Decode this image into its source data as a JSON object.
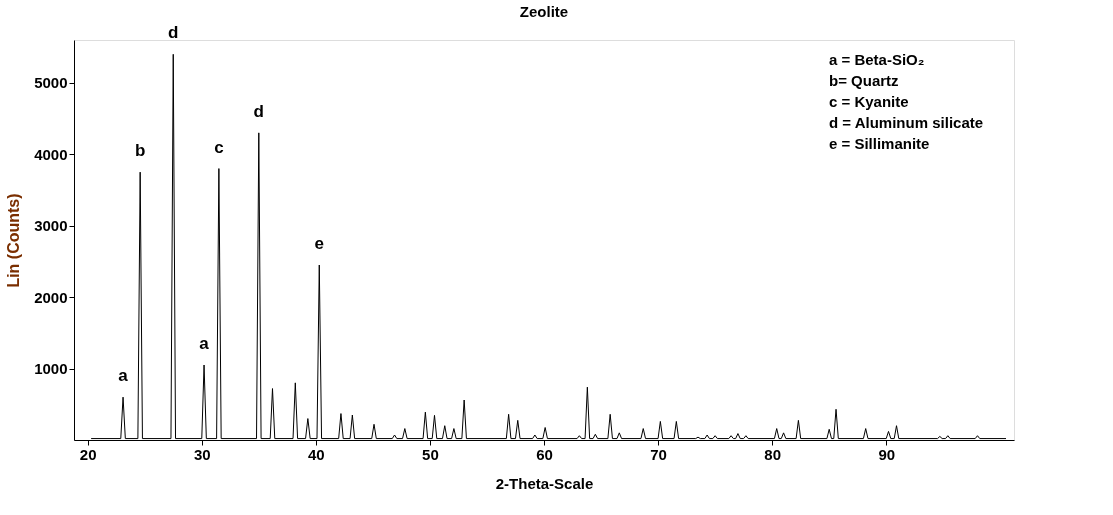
{
  "chart_data": {
    "type": "line",
    "title": "Zeolite",
    "xlabel": "2-Theta-Scale",
    "ylabel": "Lin (Counts)",
    "xlim": [
      18.8,
      101.2
    ],
    "xticks": [
      20,
      30,
      40,
      50,
      60,
      70,
      80,
      90
    ],
    "ylim": [
      0,
      5600
    ],
    "yticks": [
      1000,
      2000,
      3000,
      4000,
      5000
    ],
    "grid": false,
    "marker": "none",
    "line_style": "solid",
    "series": [
      {
        "color": "#000000",
        "x": [
          20.3,
          22.9,
          23.1,
          23.3,
          24.4,
          24.6,
          24.8,
          27.3,
          27.5,
          27.7,
          30.0,
          30.2,
          30.4,
          31.3,
          31.5,
          31.7,
          34.8,
          35.0,
          35.2,
          36.0,
          36.2,
          36.4,
          38.0,
          38.2,
          38.4,
          39.1,
          39.3,
          39.5,
          40.1,
          40.3,
          40.5,
          42.0,
          42.2,
          42.4,
          43.0,
          43.2,
          43.4,
          44.9,
          45.1,
          45.3,
          46.7,
          46.9,
          47.1,
          47.6,
          47.8,
          48.0,
          49.4,
          49.6,
          49.8,
          50.2,
          50.4,
          50.6,
          51.1,
          51.3,
          51.5,
          51.9,
          52.1,
          52.3,
          52.8,
          53.0,
          53.2,
          56.7,
          56.9,
          57.1,
          57.5,
          57.7,
          57.9,
          59.0,
          59.2,
          59.4,
          59.9,
          60.1,
          60.3,
          62.9,
          63.1,
          63.3,
          63.6,
          63.8,
          64.0,
          64.3,
          64.5,
          64.7,
          65.6,
          65.8,
          66.0,
          66.4,
          66.6,
          66.8,
          68.5,
          68.7,
          68.9,
          70.0,
          70.2,
          70.4,
          71.4,
          71.6,
          71.8,
          73.3,
          73.5,
          73.7,
          74.1,
          74.3,
          74.5,
          74.8,
          75.0,
          75.2,
          76.2,
          76.4,
          76.6,
          76.8,
          77.0,
          77.2,
          77.5,
          77.7,
          77.9,
          80.2,
          80.4,
          80.6,
          80.8,
          81.0,
          81.2,
          82.1,
          82.3,
          82.5,
          84.8,
          85.0,
          85.2,
          85.4,
          85.6,
          85.8,
          88.0,
          88.2,
          88.4,
          90.0,
          90.2,
          90.4,
          90.7,
          90.9,
          91.1,
          94.5,
          94.7,
          94.9,
          95.2,
          95.4,
          95.6,
          97.8,
          98.0,
          98.2,
          100.5
        ],
        "values": [
          20,
          20,
          600,
          20,
          20,
          3750,
          20,
          20,
          5400,
          20,
          20,
          1050,
          20,
          20,
          3800,
          20,
          20,
          4300,
          20,
          20,
          720,
          20,
          20,
          800,
          20,
          20,
          300,
          20,
          20,
          2450,
          20,
          20,
          370,
          20,
          20,
          350,
          20,
          20,
          220,
          20,
          20,
          70,
          20,
          20,
          160,
          20,
          20,
          390,
          20,
          20,
          345,
          20,
          20,
          200,
          20,
          20,
          160,
          20,
          20,
          560,
          20,
          20,
          360,
          20,
          20,
          275,
          20,
          20,
          70,
          20,
          20,
          175,
          20,
          20,
          60,
          20,
          20,
          740,
          20,
          20,
          80,
          20,
          20,
          360,
          20,
          20,
          100,
          20,
          20,
          160,
          20,
          20,
          260,
          20,
          20,
          260,
          20,
          20,
          40,
          20,
          20,
          70,
          20,
          20,
          60,
          20,
          20,
          60,
          20,
          20,
          90,
          20,
          20,
          60,
          20,
          20,
          160,
          20,
          20,
          100,
          20,
          20,
          275,
          20,
          20,
          150,
          20,
          20,
          430,
          20,
          20,
          160,
          20,
          20,
          120,
          20,
          20,
          200,
          20,
          20,
          50,
          20,
          20,
          60,
          20,
          20,
          60,
          20,
          20
        ]
      }
    ],
    "annotations": [
      {
        "text": "a",
        "x": 23.1,
        "y": 600
      },
      {
        "text": "b",
        "x": 24.6,
        "y": 3750
      },
      {
        "text": "d",
        "x": 27.5,
        "y": 5400
      },
      {
        "text": "a",
        "x": 30.2,
        "y": 1050
      },
      {
        "text": "c",
        "x": 31.5,
        "y": 3800
      },
      {
        "text": "d",
        "x": 35.0,
        "y": 4300
      },
      {
        "text": "e",
        "x": 40.3,
        "y": 2450
      },
      "a = Beta-SiO₂",
      "b= Quartz",
      "c = Kyanite",
      "d = Aluminum silicate",
      "e = Sillimanite"
    ]
  }
}
